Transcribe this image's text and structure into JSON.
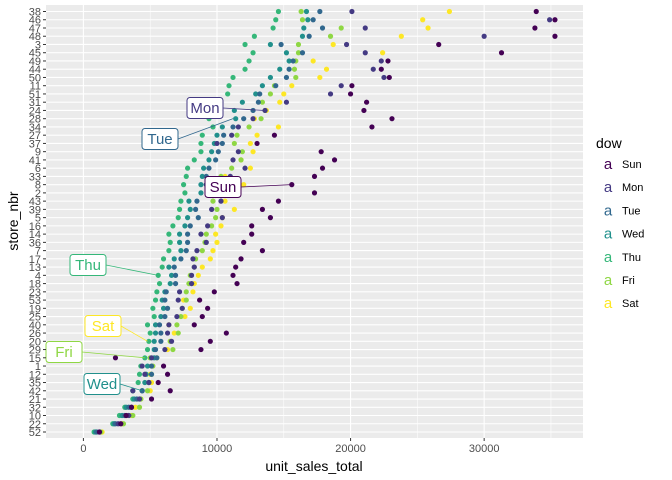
{
  "chart_data": {
    "type": "scatter",
    "xlabel": "unit_sales_total",
    "ylabel": "store_nbr",
    "xlim": [
      -2800,
      37400
    ],
    "x_ticks": [
      0,
      10000,
      20000,
      30000
    ],
    "x_tick_labels": [
      "0",
      "10000",
      "20000",
      "30000"
    ],
    "categories": [
      "38",
      "46",
      "47",
      "48",
      "3",
      "45",
      "49",
      "44",
      "50",
      "11",
      "51",
      "31",
      "24",
      "28",
      "34",
      "27",
      "37",
      "9",
      "41",
      "6",
      "33",
      "8",
      "2",
      "43",
      "39",
      "5",
      "16",
      "14",
      "36",
      "7",
      "17",
      "13",
      "4",
      "18",
      "23",
      "53",
      "19",
      "25",
      "40",
      "26",
      "20",
      "29",
      "15",
      "1",
      "12",
      "35",
      "42",
      "21",
      "32",
      "10",
      "22",
      "52"
    ],
    "grid": true,
    "legend": {
      "title": "dow",
      "position": "right",
      "entries": [
        "Sun",
        "Mon",
        "Tue",
        "Wed",
        "Thu",
        "Fri",
        "Sat"
      ],
      "key_glyph": "a"
    },
    "colors": {
      "Sun": "#440154",
      "Mon": "#443A83",
      "Tue": "#31688E",
      "Wed": "#21908C",
      "Thu": "#35B779",
      "Fri": "#8FD744",
      "Sat": "#FDE725"
    },
    "annotations": [
      {
        "label": "Mon",
        "series": "Mon",
        "store": "24",
        "value": 13500
      },
      {
        "label": "Tue",
        "series": "Tue",
        "store": "28",
        "value": 11200
      },
      {
        "label": "Sun",
        "series": "Sun",
        "store": "8",
        "value": 15600
      },
      {
        "label": "Thu",
        "series": "Thu",
        "store": "4",
        "value": 5600
      },
      {
        "label": "Sat",
        "series": "Sat",
        "store": "20",
        "value": 4800
      },
      {
        "label": "Fri",
        "series": "Fri",
        "store": "15",
        "value": 4600
      },
      {
        "label": "Wed",
        "series": "Wed",
        "store": "42",
        "value": 4400
      }
    ],
    "series": [
      {
        "name": "Sun",
        "values": [
          33900,
          35300,
          33800,
          35300,
          26600,
          31300,
          22800,
          22300,
          22900,
          20100,
          20000,
          21200,
          21000,
          23100,
          21600,
          14300,
          13000,
          17800,
          18800,
          17900,
          17300,
          15600,
          17300,
          14600,
          13400,
          14000,
          12600,
          12600,
          12000,
          13400,
          11800,
          11400,
          11200,
          11500,
          9800,
          8700,
          9300,
          8900,
          8300,
          10700,
          9500,
          8800,
          2400,
          6000,
          6300,
          5600,
          6500,
          5100,
          3600,
          3200,
          2800,
          1200
        ]
      },
      {
        "name": "Mon",
        "values": [
          20100,
          34900,
          21100,
          30000,
          19700,
          21100,
          22300,
          21700,
          22500,
          19300,
          18500,
          15200,
          13600,
          12700,
          11600,
          11100,
          10000,
          11600,
          11200,
          12100,
          11000,
          10100,
          11600,
          10300,
          9600,
          10400,
          9300,
          8800,
          9200,
          8500,
          8200,
          8300,
          8100,
          8100,
          7200,
          7100,
          7400,
          7000,
          6400,
          6300,
          6600,
          6100,
          5100,
          4400,
          4600,
          4900,
          3700,
          4200,
          3600,
          3400,
          2600,
          1200
        ]
      },
      {
        "name": "Tue",
        "values": [
          17700,
          17200,
          17900,
          16900,
          14800,
          16400,
          15700,
          15400,
          15200,
          14400,
          13200,
          13100,
          12700,
          12000,
          11200,
          10500,
          10400,
          10100,
          9900,
          9400,
          9200,
          9200,
          9300,
          8500,
          8400,
          8600,
          8000,
          7800,
          7800,
          7700,
          7300,
          6800,
          6900,
          6900,
          6200,
          6100,
          6300,
          6100,
          5700,
          5800,
          5800,
          5400,
          5500,
          5100,
          5100,
          4900,
          4400,
          4000,
          3400,
          3100,
          2400,
          1000
        ]
      },
      {
        "name": "Wed",
        "values": [
          16700,
          16800,
          16500,
          16400,
          14000,
          15200,
          15400,
          14700,
          14000,
          13400,
          12900,
          11900,
          11300,
          11400,
          10400,
          10000,
          9800,
          9600,
          9400,
          9000,
          8900,
          8800,
          8800,
          7900,
          8000,
          7800,
          7600,
          7200,
          7200,
          7300,
          6800,
          6400,
          6600,
          6500,
          6100,
          5900,
          6000,
          5800,
          5400,
          5400,
          5300,
          5300,
          5300,
          4800,
          4700,
          4600,
          4400,
          3800,
          3200,
          2900,
          2300,
          900
        ]
      },
      {
        "name": "Thu",
        "values": [
          14600,
          14400,
          14200,
          12800,
          12100,
          12700,
          12400,
          12100,
          11200,
          10900,
          10800,
          10300,
          10200,
          9400,
          9700,
          8900,
          8800,
          8800,
          8300,
          7800,
          7700,
          7500,
          7600,
          7300,
          7200,
          7100,
          6700,
          6400,
          6500,
          6400,
          6000,
          5900,
          5600,
          5700,
          5500,
          5400,
          5200,
          5300,
          4800,
          5000,
          4900,
          4800,
          4600,
          4300,
          4200,
          4100,
          3700,
          3700,
          3100,
          2700,
          2200,
          800
        ]
      },
      {
        "name": "Fri",
        "values": [
          16300,
          16400,
          19300,
          18500,
          16100,
          16100,
          15900,
          15800,
          15900,
          14300,
          14000,
          13400,
          13600,
          13300,
          12400,
          11500,
          11300,
          11900,
          11800,
          11100,
          10300,
          9800,
          9800,
          9700,
          10000,
          9900,
          9600,
          9200,
          9100,
          8900,
          8400,
          8300,
          8000,
          7900,
          7700,
          7700,
          7400,
          7300,
          7000,
          7100,
          6500,
          6700,
          5000,
          5200,
          5100,
          4900,
          4800,
          4300,
          4200,
          3700,
          3000,
          1300
        ]
      },
      {
        "name": "Sat",
        "values": [
          27400,
          25400,
          25800,
          23800,
          18700,
          22400,
          17200,
          18200,
          17700,
          15600,
          15000,
          14700,
          13700,
          12800,
          14600,
          13000,
          12500,
          12700,
          11800,
          12500,
          10600,
          12000,
          11400,
          10600,
          11300,
          10400,
          10300,
          9900,
          10000,
          9700,
          9500,
          8900,
          8600,
          8300,
          8200,
          7500,
          8000,
          7600,
          6400,
          6800,
          6500,
          6300,
          5500,
          5100,
          5000,
          5100,
          5000,
          4300,
          3900,
          3600,
          2900,
          1400
        ]
      }
    ]
  }
}
